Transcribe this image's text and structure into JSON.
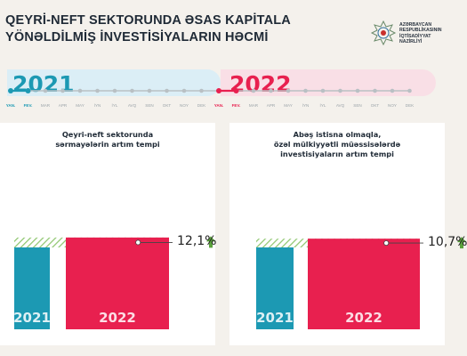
{
  "header": {
    "title_line1": "QEYRİ-NEFT SEKTORUNDA ƏSAS KAPİTALA",
    "title_line2": "YÖNƏLDİLMİŞ İNVESTİSİYALARIN HƏCMİ",
    "ministry_line1": "AZƏRBAYCAN",
    "ministry_line2": "RESPUBLİKASININ",
    "ministry_line3": "İQTİSADİYYAT",
    "ministry_line4": "NAZİRLİYİ",
    "logo_icon": "state-emblem-icon"
  },
  "timeline": {
    "year_left": "2021",
    "year_right": "2022",
    "months_2021": [
      "YAN.",
      "FEV.",
      "MAR",
      "APR",
      "MAY",
      "İYN",
      "İYL",
      "AVQ",
      "SEN",
      "OKT",
      "NOY",
      "DEK"
    ],
    "months_2022": [
      "YAN.",
      "FEV.",
      "MAR",
      "APR",
      "MAY",
      "İYN",
      "İYL",
      "AVQ",
      "SEN",
      "OKT",
      "NOY",
      "DEK"
    ],
    "active_months_2021": 2,
    "active_months_2022": 2
  },
  "colors": {
    "blue": "#1c99b3",
    "red": "#e8204f",
    "green": "#5aa23c",
    "hatch_green": "#8cc56c"
  },
  "chart_data": [
    {
      "type": "bar",
      "title_line1": "Qeyri-neft sektorunda",
      "title_line2": "sərmayələrin artım tempi",
      "categories": [
        "2021",
        "2022"
      ],
      "values": [
        100,
        112.1
      ],
      "growth_label": "12,1%",
      "growth_icon": "arrow-up-icon"
    },
    {
      "type": "bar",
      "title_line1": "Abəş istisna olmaqla,",
      "title_line2": "özəl mülkiyyətli müəssisələrdə",
      "title_line3": "investisiyaların artım tempi",
      "categories": [
        "2021",
        "2022"
      ],
      "values": [
        100,
        110.7
      ],
      "growth_label": "10,7%",
      "growth_icon": "arrow-up-icon"
    }
  ]
}
